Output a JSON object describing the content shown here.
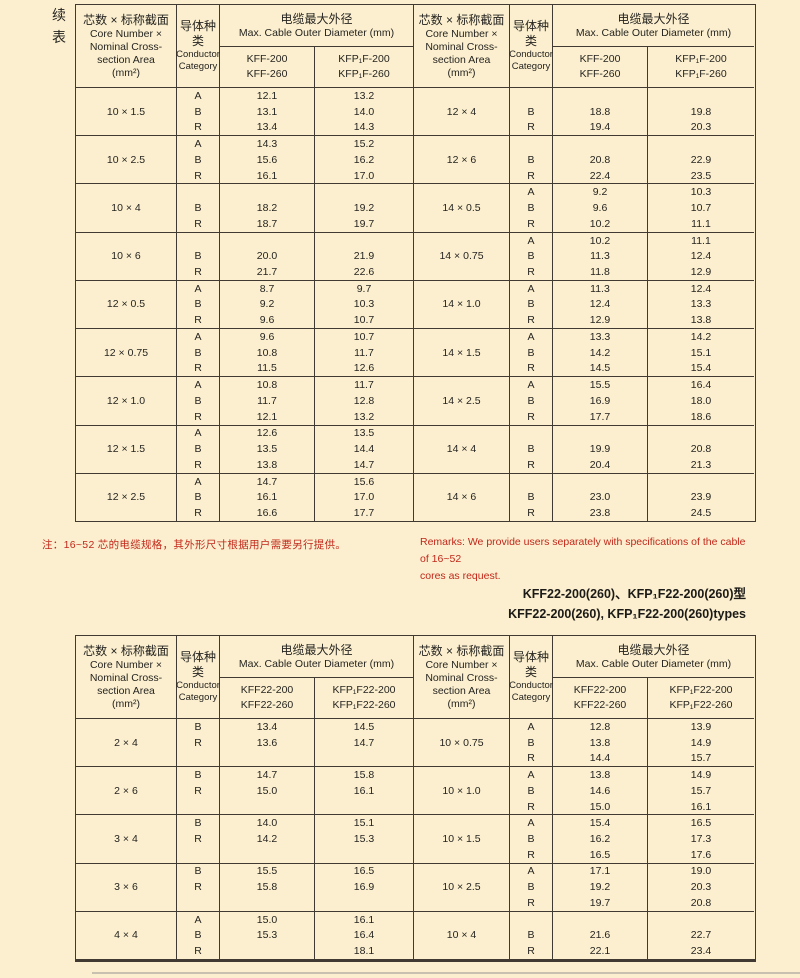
{
  "page": {
    "continued_label": "续表"
  },
  "colors": {
    "background": "#fbefcf",
    "red_text": "#c2271a",
    "table_line": "#403a32"
  },
  "table1": {
    "header": {
      "spec_zh": "芯数 × 标称截面",
      "spec_en": [
        "Core Number ×",
        "Nominal Cross-",
        "section Area",
        "(mm²)"
      ],
      "cond_zh": [
        "导体种",
        "类"
      ],
      "cond_en": [
        "Conductor",
        "Category"
      ],
      "dia_zh": "电缆最大外径",
      "dia_en": "Max. Cable Outer Diameter (mm)",
      "col3": [
        "KFF-200",
        "KFF-260"
      ],
      "col4": [
        "KFP₁F-200",
        "KFP₁F-260"
      ]
    },
    "left_groups": [
      {
        "spec": "10 × 1.5",
        "rows": [
          [
            "A",
            "12.1",
            "13.2"
          ],
          [
            "B",
            "13.1",
            "14.0"
          ],
          [
            "R",
            "13.4",
            "14.3"
          ]
        ]
      },
      {
        "spec": "10 × 2.5",
        "rows": [
          [
            "A",
            "14.3",
            "15.2"
          ],
          [
            "B",
            "15.6",
            "16.2"
          ],
          [
            "R",
            "16.1",
            "17.0"
          ]
        ]
      },
      {
        "spec": "10 × 4",
        "rows": [
          [
            "",
            "",
            ""
          ],
          [
            "B",
            "18.2",
            "19.2"
          ],
          [
            "R",
            "18.7",
            "19.7"
          ]
        ]
      },
      {
        "spec": "10 × 6",
        "rows": [
          [
            "",
            "",
            ""
          ],
          [
            "B",
            "20.0",
            "21.9"
          ],
          [
            "R",
            "21.7",
            "22.6"
          ]
        ]
      },
      {
        "spec": "12 × 0.5",
        "rows": [
          [
            "A",
            "8.7",
            "9.7"
          ],
          [
            "B",
            "9.2",
            "10.3"
          ],
          [
            "R",
            "9.6",
            "10.7"
          ]
        ]
      },
      {
        "spec": "12 × 0.75",
        "rows": [
          [
            "A",
            "9.6",
            "10.7"
          ],
          [
            "B",
            "10.8",
            "11.7"
          ],
          [
            "R",
            "11.5",
            "12.6"
          ]
        ]
      },
      {
        "spec": "12 × 1.0",
        "rows": [
          [
            "A",
            "10.8",
            "11.7"
          ],
          [
            "B",
            "11.7",
            "12.8"
          ],
          [
            "R",
            "12.1",
            "13.2"
          ]
        ]
      },
      {
        "spec": "12 × 1.5",
        "rows": [
          [
            "A",
            "12.6",
            "13.5"
          ],
          [
            "B",
            "13.5",
            "14.4"
          ],
          [
            "R",
            "13.8",
            "14.7"
          ]
        ]
      },
      {
        "spec": "12 × 2.5",
        "rows": [
          [
            "A",
            "14.7",
            "15.6"
          ],
          [
            "B",
            "16.1",
            "17.0"
          ],
          [
            "R",
            "16.6",
            "17.7"
          ]
        ]
      }
    ],
    "right_groups": [
      {
        "spec": "12 × 4",
        "rows": [
          [
            "",
            "",
            ""
          ],
          [
            "B",
            "18.8",
            "19.8"
          ],
          [
            "R",
            "19.4",
            "20.3"
          ]
        ]
      },
      {
        "spec": "12 × 6",
        "rows": [
          [
            "",
            "",
            ""
          ],
          [
            "B",
            "20.8",
            "22.9"
          ],
          [
            "R",
            "22.4",
            "23.5"
          ]
        ]
      },
      {
        "spec": "14 × 0.5",
        "rows": [
          [
            "A",
            "9.2",
            "10.3"
          ],
          [
            "B",
            "9.6",
            "10.7"
          ],
          [
            "R",
            "10.2",
            "11.1"
          ]
        ]
      },
      {
        "spec": "14 × 0.75",
        "rows": [
          [
            "A",
            "10.2",
            "11.1"
          ],
          [
            "B",
            "11.3",
            "12.4"
          ],
          [
            "R",
            "11.8",
            "12.9"
          ]
        ]
      },
      {
        "spec": "14 × 1.0",
        "rows": [
          [
            "A",
            "11.3",
            "12.4"
          ],
          [
            "B",
            "12.4",
            "13.3"
          ],
          [
            "R",
            "12.9",
            "13.8"
          ]
        ]
      },
      {
        "spec": "14 × 1.5",
        "rows": [
          [
            "A",
            "13.3",
            "14.2"
          ],
          [
            "B",
            "14.2",
            "15.1"
          ],
          [
            "R",
            "14.5",
            "15.4"
          ]
        ]
      },
      {
        "spec": "14 × 2.5",
        "rows": [
          [
            "A",
            "15.5",
            "16.4"
          ],
          [
            "B",
            "16.9",
            "18.0"
          ],
          [
            "R",
            "17.7",
            "18.6"
          ]
        ]
      },
      {
        "spec": "14 × 4",
        "rows": [
          [
            "",
            "",
            ""
          ],
          [
            "B",
            "19.9",
            "20.8"
          ],
          [
            "R",
            "20.4",
            "21.3"
          ]
        ]
      },
      {
        "spec": "14 × 6",
        "rows": [
          [
            "",
            "",
            ""
          ],
          [
            "B",
            "23.0",
            "23.9"
          ],
          [
            "R",
            "23.8",
            "24.5"
          ]
        ]
      }
    ]
  },
  "notes": {
    "zh": "注：16~52 芯的电缆规格，其外形尺寸根据用户需要另行提供。",
    "en1": "Remarks: We  provide users separately with specifications of the cable of 16~52",
    "en2": "cores as request."
  },
  "section": {
    "title_zh": "KFF22-200(260)、KFP₁F22-200(260)型",
    "title_en": "KFF22-200(260), KFP₁F22-200(260)types"
  },
  "table2": {
    "header": {
      "spec_zh": "芯数 × 标称截面",
      "spec_en": [
        "Core Number ×",
        "Nominal Cross-",
        "section Area",
        "(mm²)"
      ],
      "cond_zh": [
        "导体种",
        "类"
      ],
      "cond_en": [
        "Conductor",
        "Category"
      ],
      "dia_zh": "电缆最大外径",
      "dia_en": "Max. Cable Outer Diameter (mm)",
      "col3": [
        "KFF22-200",
        "KFF22-260"
      ],
      "col4": [
        "KFP₁F22-200",
        "KFP₁F22-260"
      ]
    },
    "left_groups": [
      {
        "spec": "2 × 4",
        "rows": [
          [
            "B",
            "13.4",
            "14.5"
          ],
          [
            "R",
            "13.6",
            "14.7"
          ],
          [
            "",
            "",
            ""
          ]
        ]
      },
      {
        "spec": "2 × 6",
        "rows": [
          [
            "B",
            "14.7",
            "15.8"
          ],
          [
            "R",
            "15.0",
            "16.1"
          ],
          [
            "",
            "",
            ""
          ]
        ]
      },
      {
        "spec": "3 × 4",
        "rows": [
          [
            "B",
            "14.0",
            "15.1"
          ],
          [
            "R",
            "14.2",
            "15.3"
          ],
          [
            "",
            "",
            ""
          ]
        ]
      },
      {
        "spec": "3 × 6",
        "rows": [
          [
            "B",
            "15.5",
            "16.5"
          ],
          [
            "R",
            "15.8",
            "16.9"
          ],
          [
            "",
            "",
            ""
          ]
        ]
      },
      {
        "spec": "4 × 4",
        "rows": [
          [
            "A",
            "15.0",
            "16.1"
          ],
          [
            "B",
            "15.3",
            "16.4"
          ],
          [
            "R",
            "",
            "18.1"
          ]
        ]
      }
    ],
    "right_groups": [
      {
        "spec": "10 × 0.75",
        "rows": [
          [
            "A",
            "12.8",
            "13.9"
          ],
          [
            "B",
            "13.8",
            "14.9"
          ],
          [
            "R",
            "14.4",
            "15.7"
          ]
        ]
      },
      {
        "spec": "10 × 1.0",
        "rows": [
          [
            "A",
            "13.8",
            "14.9"
          ],
          [
            "B",
            "14.6",
            "15.7"
          ],
          [
            "R",
            "15.0",
            "16.1"
          ]
        ]
      },
      {
        "spec": "10 × 1.5",
        "rows": [
          [
            "A",
            "15.4",
            "16.5"
          ],
          [
            "B",
            "16.2",
            "17.3"
          ],
          [
            "R",
            "16.5",
            "17.6"
          ]
        ]
      },
      {
        "spec": "10 × 2.5",
        "rows": [
          [
            "A",
            "17.1",
            "19.0"
          ],
          [
            "B",
            "19.2",
            "20.3"
          ],
          [
            "R",
            "19.7",
            "20.8"
          ]
        ]
      },
      {
        "spec": "10 × 4",
        "rows": [
          [
            "",
            "",
            ""
          ],
          [
            "B",
            "21.6",
            "22.7"
          ],
          [
            "R",
            "22.1",
            "23.4"
          ]
        ]
      }
    ]
  }
}
